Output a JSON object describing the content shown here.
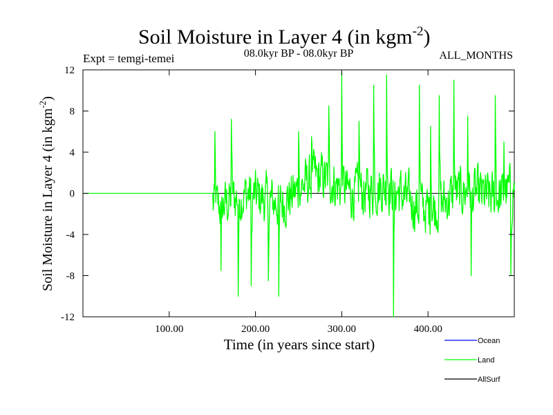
{
  "chart_data": {
    "type": "line",
    "title_main": "Soil Moisture in Layer 4 (in kgm",
    "title_exp": "-2",
    "title_close": ")",
    "subtitle_left": "Expt = temgi-temei",
    "subtitle_center": "08.0kyr BP - 08.0kyr BP",
    "subtitle_right": "ALL_MONTHS",
    "xlabel": "Time (in years since start)",
    "ylabel_main": "Soil Moisture in Layer 4 (in kgm",
    "ylabel_exp": "-2",
    "ylabel_close": ")",
    "xlim": [
      0,
      500
    ],
    "ylim": [
      -12,
      12
    ],
    "xticks": [
      100,
      200,
      300,
      400
    ],
    "xtick_labels": [
      "100.00",
      "200.00",
      "300.00",
      "400.00"
    ],
    "yticks": [
      12,
      8,
      4,
      0,
      -4,
      -8,
      -12
    ],
    "ytick_labels": [
      "12",
      "8",
      "4",
      "0",
      "-4",
      "-8",
      "-12"
    ],
    "legend": [
      {
        "name": "Ocean",
        "color": "#0000ff"
      },
      {
        "name": "Land",
        "color": "#00ff00"
      },
      {
        "name": "AllSurf",
        "color": "#000000"
      }
    ],
    "series": [
      {
        "name": "Land",
        "color": "#00ff00",
        "note": "zero for years 0-150, then noisy variability (std ~3.5) with local extremes",
        "flat_until": 150,
        "anchors": [
          [
            153,
            6.0
          ],
          [
            160,
            -7.5
          ],
          [
            172,
            7.2
          ],
          [
            180,
            -10.0
          ],
          [
            195,
            -9.0
          ],
          [
            215,
            -8.5
          ],
          [
            227,
            -10.0
          ],
          [
            250,
            6.0
          ],
          [
            265,
            5.5
          ],
          [
            285,
            8.5
          ],
          [
            300,
            11.8
          ],
          [
            320,
            7.0
          ],
          [
            337,
            10.5
          ],
          [
            352,
            11.5
          ],
          [
            360,
            -12.0
          ],
          [
            390,
            10.5
          ],
          [
            403,
            6.5
          ],
          [
            413,
            9.5
          ],
          [
            430,
            11.0
          ],
          [
            446,
            7.5
          ],
          [
            450,
            -8.0
          ],
          [
            478,
            9.5
          ],
          [
            488,
            5.0
          ],
          [
            496,
            -8.0
          ]
        ]
      }
    ]
  }
}
